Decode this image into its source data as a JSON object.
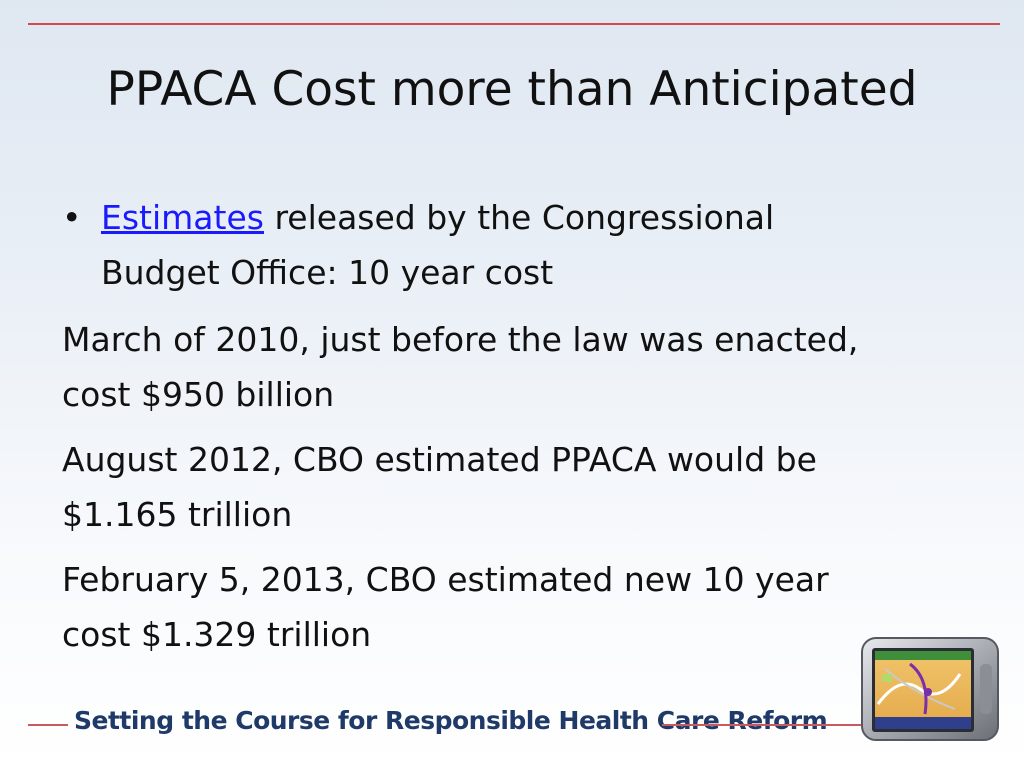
{
  "slide": {
    "title": "PPACA Cost more than Anticipated",
    "bullet": {
      "link_text": "Estimates",
      "line1_rest": " released by the Congressional",
      "line2": "Budget Office: 10 year cost"
    },
    "paragraphs": [
      {
        "line1": "March of 2010, just before the law was enacted,",
        "line2": "cost $950 billion"
      },
      {
        "line1": "August 2012, CBO estimated PPACA would be",
        "line2": "$1.165 trillion"
      },
      {
        "line1": "February 5, 2013, CBO estimated new 10 year",
        "line2": "cost $1.329 trillion"
      }
    ],
    "footer_text": "Setting the Course for Responsible Health Care Reform"
  },
  "colors": {
    "accent_red": "#d24a4f",
    "footer_blue": "#1f3a68",
    "link_blue": "#1a1aff"
  },
  "icons": {
    "gps": "gps-device-icon"
  }
}
